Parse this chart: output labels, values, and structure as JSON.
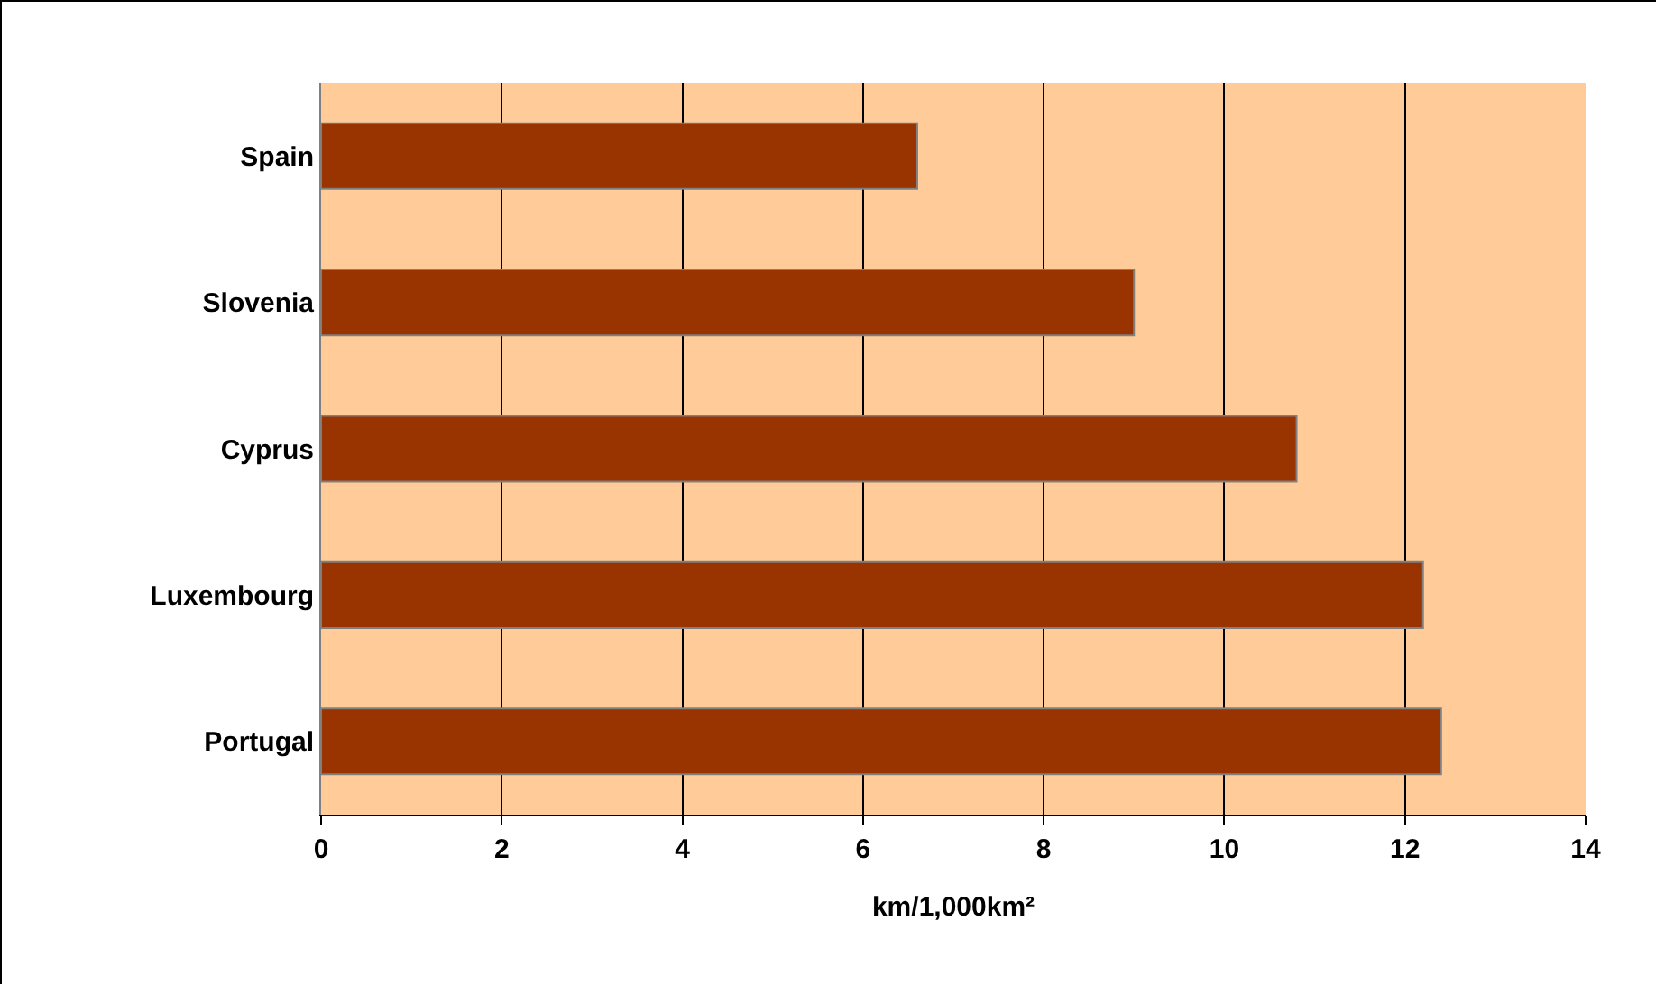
{
  "chart_data": {
    "type": "bar",
    "orientation": "horizontal",
    "categories": [
      "Spain",
      "Slovenia",
      "Cyprus",
      "Luxembourg",
      "Portugal"
    ],
    "values": [
      6.6,
      9.0,
      10.8,
      12.2,
      12.4
    ],
    "color": "#993300",
    "xlabel": "km/1,000km²",
    "xlim": [
      0,
      14
    ],
    "xticks": [
      0,
      2,
      4,
      6,
      8,
      10,
      12,
      14
    ],
    "grid": "x",
    "legend": false
  }
}
